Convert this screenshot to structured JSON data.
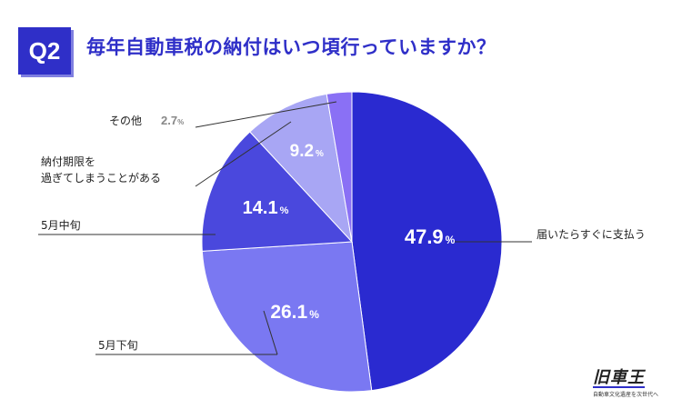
{
  "header": {
    "badge": "Q2",
    "question": "毎年自動車税の納付はいつ頃行っていますか？"
  },
  "colors": {
    "primary": "#2f2fc8",
    "slices": [
      "#2a2ad0",
      "#7a78f2",
      "#4a48dd",
      "#a8a6f4",
      "#8a70f5"
    ]
  },
  "chart_data": {
    "type": "pie",
    "title": "毎年自動車税の納付はいつ頃行っていますか？",
    "unit": "%",
    "slices": [
      {
        "label": "届いたらすぐに支払う",
        "value": 47.9,
        "display": "47.9"
      },
      {
        "label": "5月下旬",
        "value": 26.1,
        "display": "26.1"
      },
      {
        "label": "5月中旬",
        "value": 14.1,
        "display": "14.1"
      },
      {
        "label": "納付期限を過ぎてしまうことがある",
        "value": 9.2,
        "display": "9.2"
      },
      {
        "label": "その他",
        "value": 2.7,
        "display": "2.7"
      }
    ]
  },
  "labels": {
    "s0": "届いたらすぐに支払う",
    "s1": "5月下旬",
    "s2": "5月中旬",
    "s3_line1": "納付期限を",
    "s3_line2": "過ぎてしまうことがある",
    "s4_name": "その他",
    "s4_value": "2.7",
    "percent_sign": "%"
  },
  "logo": {
    "main": "旧車王",
    "sub": "自動車文化遺産を次世代へ"
  }
}
